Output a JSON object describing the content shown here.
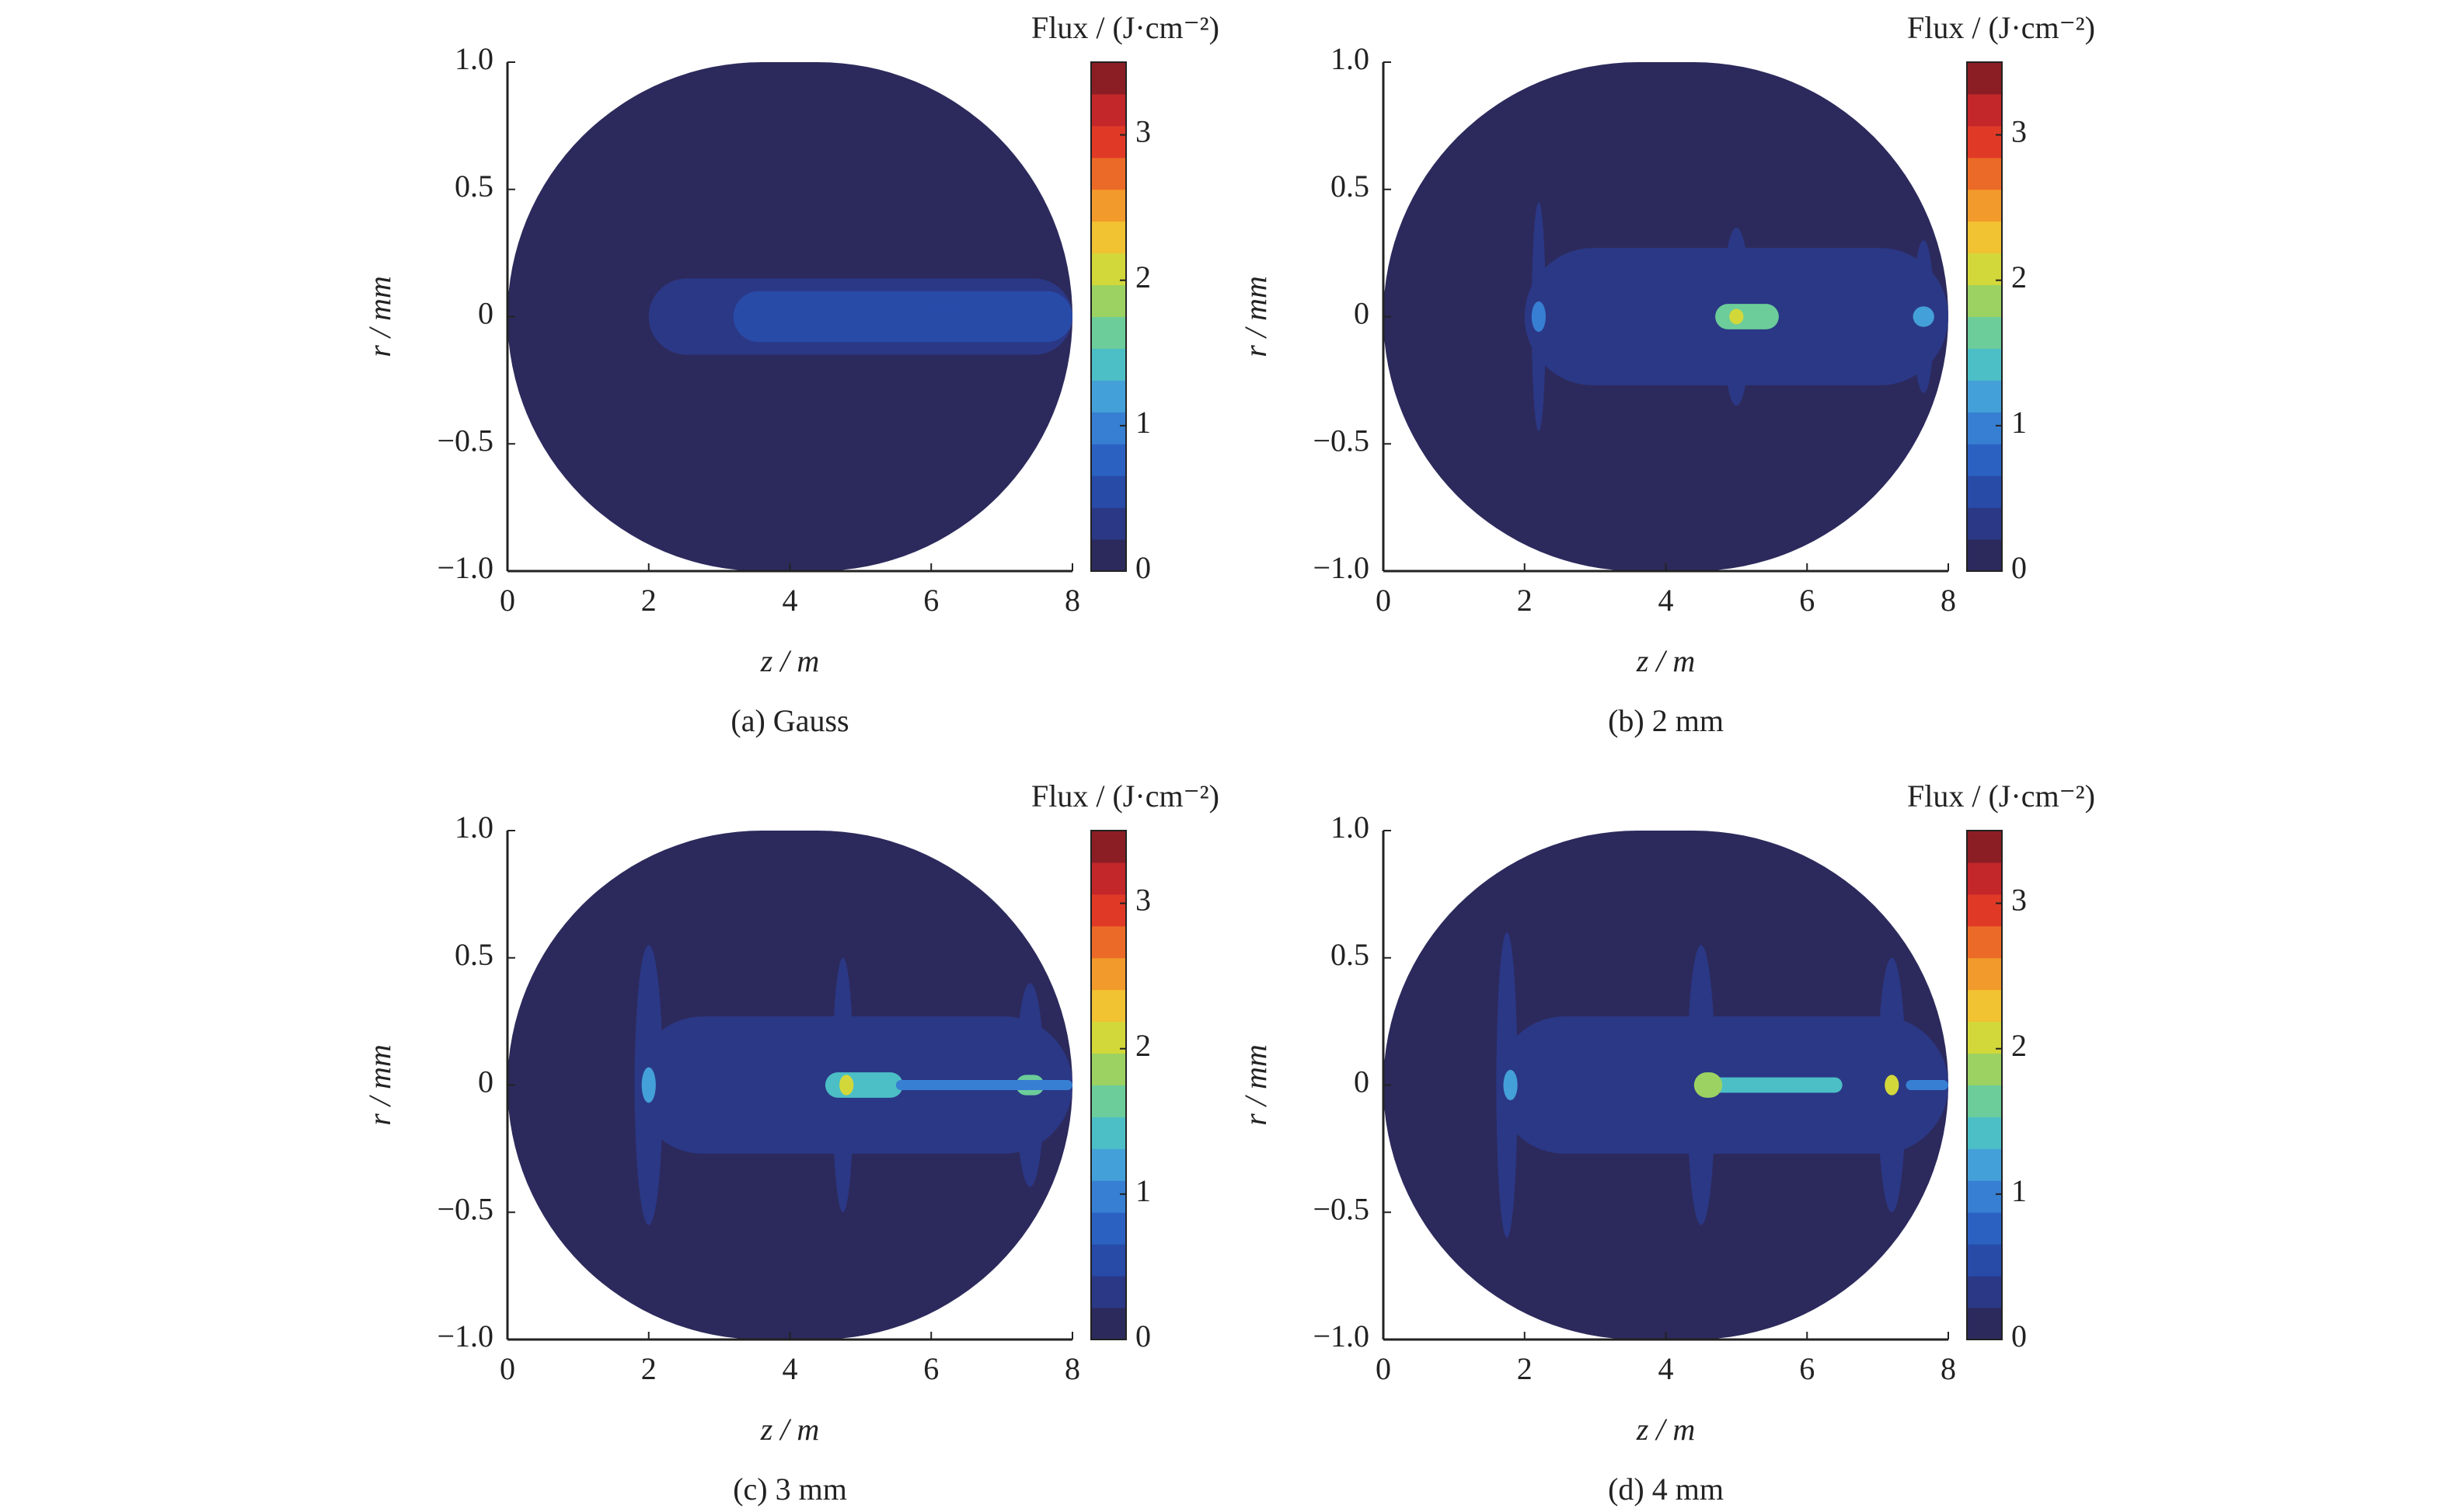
{
  "chart_data": [
    {
      "type": "heatmap",
      "title": "(a) Gauss",
      "xlabel": "z / m",
      "ylabel": "r / mm",
      "colorbar_label": "Flux / (J·cm⁻²)",
      "xlim": [
        0,
        8
      ],
      "xticks": [
        0,
        2,
        4,
        6,
        8
      ],
      "ylim": [
        -1,
        1
      ],
      "yticks": [
        {
          "value": -1,
          "label": "−1.0"
        },
        {
          "value": -0.5,
          "label": "−0.5"
        },
        0,
        0.5,
        {
          "value": 1,
          "label": "1.0"
        }
      ],
      "clim": [
        0,
        3.5
      ],
      "cticks": [
        0,
        1,
        2,
        3
      ],
      "colormap": [
        "#2c2a5c",
        "#2b3886",
        "#284ba8",
        "#2b62c2",
        "#377fd2",
        "#44a0d8",
        "#4cbfc6",
        "#6ccd9a",
        "#9bd262",
        "#d3d83a",
        "#f1c232",
        "#f29a2b",
        "#ec6a27",
        "#e03a27",
        "#c3272a",
        "#8b1e24"
      ],
      "regions": [
        {
          "z": [
            0,
            8
          ],
          "r": 1,
          "flux": 0.05
        },
        {
          "z": [
            1.2,
            8
          ],
          "r": 0.22,
          "flux": 0.15
        },
        {
          "z": [
            2,
            8
          ],
          "r": 0.15,
          "flux": 0.3
        },
        {
          "z": [
            3.2,
            8
          ],
          "r": 0.1,
          "flux": 0.45
        },
        {
          "z": [
            5.8,
            6.6
          ],
          "r": 0.05,
          "flux": 0.6
        }
      ]
    },
    {
      "type": "heatmap",
      "title": "(b) 2 mm",
      "xlabel": "z / m",
      "ylabel": "r / mm",
      "colorbar_label": "Flux / (J·cm⁻²)",
      "xlim": [
        0,
        8
      ],
      "xticks": [
        0,
        2,
        4,
        6,
        8
      ],
      "ylim": [
        -1,
        1
      ],
      "yticks": [
        {
          "value": -1,
          "label": "−1.0"
        },
        {
          "value": -0.5,
          "label": "−0.5"
        },
        0,
        0.5,
        {
          "value": 1,
          "label": "1.0"
        }
      ],
      "clim": [
        0,
        3.5
      ],
      "cticks": [
        0,
        1,
        2,
        3
      ],
      "colormap": [
        "#2c2a5c",
        "#2b3886",
        "#284ba8",
        "#2b62c2",
        "#377fd2",
        "#44a0d8",
        "#4cbfc6",
        "#6ccd9a",
        "#9bd262",
        "#d3d83a",
        "#f1c232",
        "#f29a2b",
        "#ec6a27",
        "#e03a27",
        "#c3272a",
        "#8b1e24"
      ],
      "regions": [
        {
          "z": [
            0,
            8
          ],
          "r": 1,
          "flux": 0.05
        },
        {
          "z": [
            1.2,
            2.2
          ],
          "r": 0.2,
          "flux": 0.15
        },
        {
          "z": [
            2,
            8
          ],
          "r": 0.27,
          "flux": 0.4
        },
        {
          "z": [
            2.1,
            2.3
          ],
          "r": 0.45,
          "flux": 0.35
        },
        {
          "z": [
            2.1,
            2.3
          ],
          "r": 0.06,
          "flux": 1
        },
        {
          "z": [
            4.8,
            5.2
          ],
          "r": 0.35,
          "flux": 0.35
        },
        {
          "z": [
            4.7,
            5.6
          ],
          "r": 0.05,
          "flux": 1.6
        },
        {
          "z": [
            4.9,
            5.1
          ],
          "r": 0.03,
          "flux": 2
        },
        {
          "z": [
            7.5,
            7.8
          ],
          "r": 0.3,
          "flux": 0.35
        },
        {
          "z": [
            7.5,
            7.8
          ],
          "r": 0.04,
          "flux": 1.2
        }
      ]
    },
    {
      "type": "heatmap",
      "title": "(c) 3 mm",
      "xlabel": "z / m",
      "ylabel": "r / mm",
      "colorbar_label": "Flux / (J·cm⁻²)",
      "xlim": [
        0,
        8
      ],
      "xticks": [
        0,
        2,
        4,
        6,
        8
      ],
      "ylim": [
        -1,
        1
      ],
      "yticks": [
        {
          "value": -1,
          "label": "−1.0"
        },
        {
          "value": -0.5,
          "label": "−0.5"
        },
        0,
        0.5,
        {
          "value": 1,
          "label": "1.0"
        }
      ],
      "clim": [
        0,
        3.5
      ],
      "cticks": [
        0,
        1,
        2,
        3
      ],
      "colormap": [
        "#2c2a5c",
        "#2b3886",
        "#284ba8",
        "#2b62c2",
        "#377fd2",
        "#44a0d8",
        "#4cbfc6",
        "#6ccd9a",
        "#9bd262",
        "#d3d83a",
        "#f1c232",
        "#f29a2b",
        "#ec6a27",
        "#e03a27",
        "#c3272a",
        "#8b1e24"
      ],
      "regions": [
        {
          "z": [
            0,
            8
          ],
          "r": 1,
          "flux": 0.05
        },
        {
          "z": [
            0.7,
            2
          ],
          "r": 0.25,
          "flux": 0.15
        },
        {
          "z": [
            1.8,
            8
          ],
          "r": 0.27,
          "flux": 0.4
        },
        {
          "z": [
            1.8,
            2.2
          ],
          "r": 0.55,
          "flux": 0.35
        },
        {
          "z": [
            1.9,
            2.1
          ],
          "r": 0.07,
          "flux": 1.2
        },
        {
          "z": [
            4.6,
            4.9
          ],
          "r": 0.5,
          "flux": 0.35
        },
        {
          "z": [
            4.5,
            5.6
          ],
          "r": 0.05,
          "flux": 1.5
        },
        {
          "z": [
            4.7,
            4.9
          ],
          "r": 0.04,
          "flux": 2
        },
        {
          "z": [
            7.2,
            7.6
          ],
          "r": 0.4,
          "flux": 0.35
        },
        {
          "z": [
            7.2,
            7.6
          ],
          "r": 0.04,
          "flux": 1.6
        },
        {
          "z": [
            5.5,
            8
          ],
          "r": 0.02,
          "flux": 0.9
        }
      ]
    },
    {
      "type": "heatmap",
      "title": "(d) 4 mm",
      "xlabel": "z / m",
      "ylabel": "r / mm",
      "colorbar_label": "Flux / (J·cm⁻²)",
      "xlim": [
        0,
        8
      ],
      "xticks": [
        0,
        2,
        4,
        6,
        8
      ],
      "ylim": [
        -1,
        1
      ],
      "yticks": [
        {
          "value": -1,
          "label": "−1.0"
        },
        {
          "value": -0.5,
          "label": "−0.5"
        },
        0,
        0.5,
        {
          "value": 1,
          "label": "1.0"
        }
      ],
      "clim": [
        0,
        3.5
      ],
      "cticks": [
        0,
        1,
        2,
        3
      ],
      "colormap": [
        "#2c2a5c",
        "#2b3886",
        "#284ba8",
        "#2b62c2",
        "#377fd2",
        "#44a0d8",
        "#4cbfc6",
        "#6ccd9a",
        "#9bd262",
        "#d3d83a",
        "#f1c232",
        "#f29a2b",
        "#ec6a27",
        "#e03a27",
        "#c3272a",
        "#8b1e24"
      ],
      "regions": [
        {
          "z": [
            0,
            8
          ],
          "r": 1,
          "flux": 0.05
        },
        {
          "z": [
            0.8,
            1.8
          ],
          "r": 0.2,
          "flux": 0.2
        },
        {
          "z": [
            1.6,
            8
          ],
          "r": 0.27,
          "flux": 0.4
        },
        {
          "z": [
            1.6,
            1.9
          ],
          "r": 0.6,
          "flux": 0.35
        },
        {
          "z": [
            1.7,
            1.9
          ],
          "r": 0.06,
          "flux": 1.2
        },
        {
          "z": [
            4.3,
            4.7
          ],
          "r": 0.55,
          "flux": 0.35
        },
        {
          "z": [
            4.4,
            6.5
          ],
          "r": 0.03,
          "flux": 1.5
        },
        {
          "z": [
            4.4,
            4.8
          ],
          "r": 0.05,
          "flux": 1.8
        },
        {
          "z": [
            7,
            7.4
          ],
          "r": 0.5,
          "flux": 0.35
        },
        {
          "z": [
            7.1,
            7.3
          ],
          "r": 0.04,
          "flux": 2
        },
        {
          "z": [
            7.4,
            8
          ],
          "r": 0.02,
          "flux": 0.9
        }
      ]
    }
  ]
}
